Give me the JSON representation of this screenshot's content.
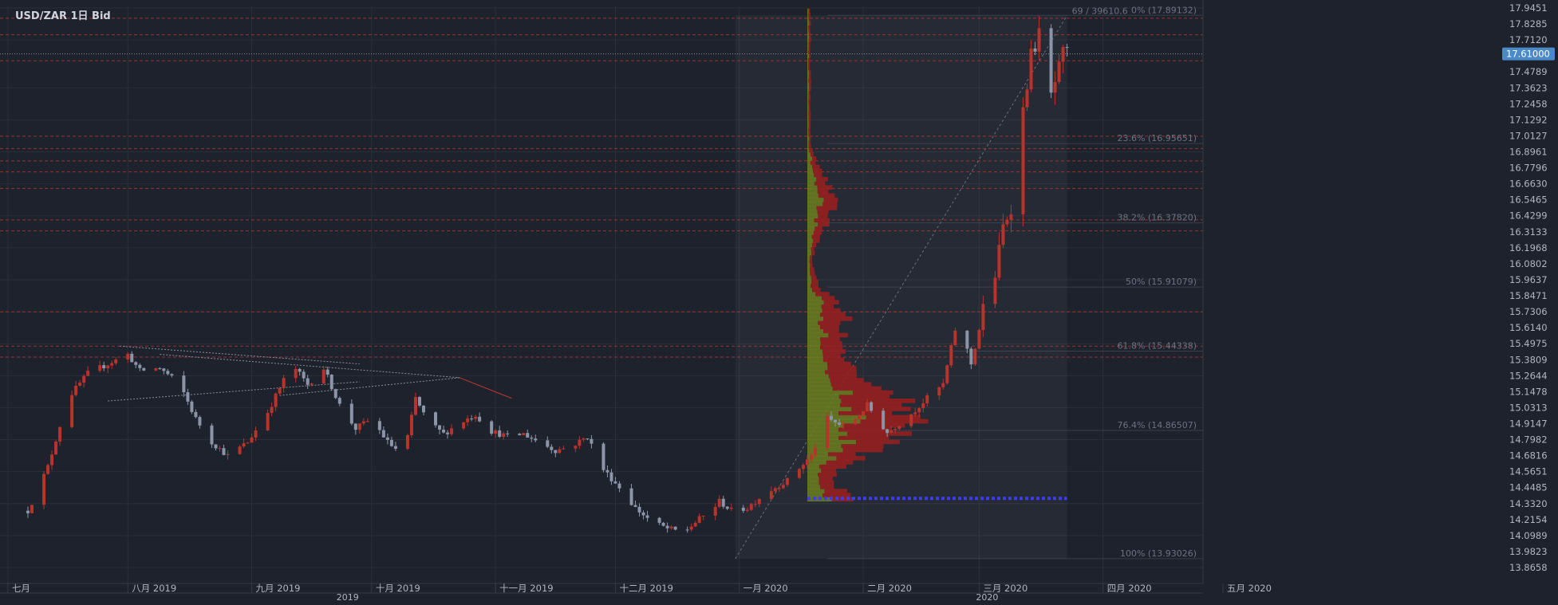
{
  "window_title": "USD/ZAR  1日 Bid",
  "chart_data": {
    "type": "candlestick",
    "symbol": "USD/ZAR",
    "timeframe": "1日",
    "price_source": "Bid",
    "current_price": "17.61000",
    "ylim": [
      13.8,
      17.98
    ],
    "y_ticks": [
      "17.9451",
      "17.8285",
      "17.7120",
      "17.4789",
      "17.3623",
      "17.2458",
      "17.1292",
      "17.0127",
      "16.8961",
      "16.7796",
      "16.6630",
      "16.5465",
      "16.4299",
      "16.3133",
      "16.1968",
      "16.0802",
      "15.9637",
      "15.8471",
      "15.7306",
      "15.6140",
      "15.4975",
      "15.3809",
      "15.2644",
      "15.1478",
      "15.0313",
      "14.9147",
      "14.7982",
      "14.6816",
      "14.5651",
      "14.4485",
      "14.3320",
      "14.2154",
      "14.0989",
      "13.9823",
      "13.8658"
    ],
    "x_ticks": [
      {
        "label": "七月",
        "day": -5
      },
      {
        "label": "八月 2019",
        "day": 25
      },
      {
        "label": "九月 2019",
        "day": 56
      },
      {
        "label": "十月 2019",
        "day": 86
      },
      {
        "label": "十一月 2019",
        "day": 117
      },
      {
        "label": "十二月 2019",
        "day": 147
      },
      {
        "label": "一月 2020",
        "day": 178
      },
      {
        "label": "二月 2020",
        "day": 209
      },
      {
        "label": "三月 2020",
        "day": 238
      },
      {
        "label": "四月 2020",
        "day": 269
      },
      {
        "label": "五月 2020",
        "day": 299
      }
    ],
    "year_labels": [
      {
        "label": "2019",
        "day": 80
      },
      {
        "label": "2020",
        "day": 240
      }
    ],
    "fibonacci": {
      "high": 17.89132,
      "low": 13.93026,
      "levels": [
        {
          "label": "0% (17.89132)",
          "value": 17.89132
        },
        {
          "label": "23.6% (16.95651)",
          "value": 16.95651
        },
        {
          "label": "38.2% (16.37820)",
          "value": 16.3782
        },
        {
          "label": "50% (15.91079)",
          "value": 15.91079
        },
        {
          "label": "61.8% (15.44338)",
          "value": 15.44338
        },
        {
          "label": "76.4% (14.86507)",
          "value": 14.86507
        },
        {
          "label": "100% (13.93026)",
          "value": 13.93026
        }
      ],
      "start_day": 177,
      "end_day": 260
    },
    "fib_top_annotation": "69 / 39610.6",
    "resistance_lines": [
      17.87,
      17.75,
      17.56,
      17.01,
      16.92,
      16.83,
      16.75,
      16.63,
      16.4,
      16.32,
      15.73,
      15.48,
      15.4
    ],
    "point_of_control": 14.37,
    "volume_profile_from": 14.35,
    "volume_profile_to": 17.94,
    "volume_profile_peak": 14.95,
    "anchors": [
      {
        "day": 0,
        "price": 14.28
      },
      {
        "day": 5,
        "price": 14.6
      },
      {
        "day": 10,
        "price": 15.1
      },
      {
        "day": 15,
        "price": 15.28
      },
      {
        "day": 20,
        "price": 15.35
      },
      {
        "day": 25,
        "price": 15.42
      },
      {
        "day": 28,
        "price": 15.3
      },
      {
        "day": 33,
        "price": 15.32
      },
      {
        "day": 38,
        "price": 15.2
      },
      {
        "day": 42,
        "price": 14.95
      },
      {
        "day": 46,
        "price": 14.78
      },
      {
        "day": 50,
        "price": 14.68
      },
      {
        "day": 55,
        "price": 14.78
      },
      {
        "day": 60,
        "price": 15.0
      },
      {
        "day": 66,
        "price": 15.35
      },
      {
        "day": 70,
        "price": 15.2
      },
      {
        "day": 74,
        "price": 15.32
      },
      {
        "day": 78,
        "price": 15.05
      },
      {
        "day": 82,
        "price": 14.88
      },
      {
        "day": 86,
        "price": 14.95
      },
      {
        "day": 90,
        "price": 14.78
      },
      {
        "day": 94,
        "price": 14.68
      },
      {
        "day": 97,
        "price": 15.1
      },
      {
        "day": 100,
        "price": 14.93
      },
      {
        "day": 104,
        "price": 14.84
      },
      {
        "day": 108,
        "price": 14.92
      },
      {
        "day": 112,
        "price": 14.98
      },
      {
        "day": 116,
        "price": 14.86
      },
      {
        "day": 120,
        "price": 14.82
      },
      {
        "day": 124,
        "price": 14.84
      },
      {
        "day": 128,
        "price": 14.78
      },
      {
        "day": 132,
        "price": 14.72
      },
      {
        "day": 136,
        "price": 14.75
      },
      {
        "day": 140,
        "price": 14.82
      },
      {
        "day": 144,
        "price": 14.58
      },
      {
        "day": 148,
        "price": 14.45
      },
      {
        "day": 152,
        "price": 14.3
      },
      {
        "day": 156,
        "price": 14.2
      },
      {
        "day": 160,
        "price": 14.15
      },
      {
        "day": 164,
        "price": 14.12
      },
      {
        "day": 168,
        "price": 14.22
      },
      {
        "day": 171,
        "price": 14.28
      },
      {
        "day": 173,
        "price": 14.35
      },
      {
        "day": 176,
        "price": 14.28
      },
      {
        "day": 180,
        "price": 14.3
      },
      {
        "day": 184,
        "price": 14.4
      },
      {
        "day": 190,
        "price": 14.5
      },
      {
        "day": 196,
        "price": 14.68
      },
      {
        "day": 200,
        "price": 14.95
      },
      {
        "day": 205,
        "price": 14.88
      },
      {
        "day": 210,
        "price": 15.05
      },
      {
        "day": 215,
        "price": 14.85
      },
      {
        "day": 220,
        "price": 14.96
      },
      {
        "day": 225,
        "price": 15.1
      },
      {
        "day": 229,
        "price": 15.2
      },
      {
        "day": 232,
        "price": 15.6
      },
      {
        "day": 234,
        "price": 15.55
      },
      {
        "day": 236,
        "price": 15.35
      },
      {
        "day": 238,
        "price": 15.6
      },
      {
        "day": 240,
        "price": 15.9
      },
      {
        "day": 242,
        "price": 16.0
      },
      {
        "day": 244,
        "price": 16.35
      },
      {
        "day": 246,
        "price": 16.5
      },
      {
        "day": 248,
        "price": 16.7
      },
      {
        "day": 249,
        "price": 17.2
      },
      {
        "day": 251,
        "price": 17.6
      },
      {
        "day": 253,
        "price": 17.75
      },
      {
        "day": 254,
        "price": 17.48
      },
      {
        "day": 256,
        "price": 17.3
      },
      {
        "day": 258,
        "price": 17.5
      },
      {
        "day": 259,
        "price": 17.61
      }
    ]
  }
}
